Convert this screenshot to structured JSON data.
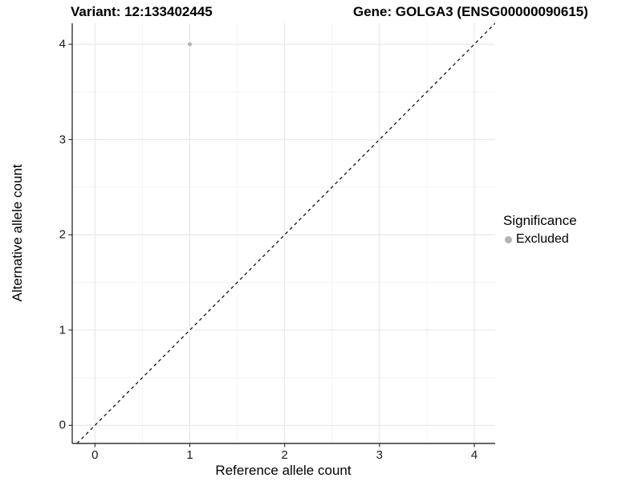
{
  "chart_data": {
    "type": "scatter",
    "title_left": "Variant: 12:133402445",
    "title_right": "Gene: GOLGA3 (ENSG00000090615)",
    "xlabel": "Reference allele count",
    "ylabel": "Alternative allele count",
    "xticks": [
      0,
      1,
      2,
      3,
      4
    ],
    "yticks": [
      0,
      1,
      2,
      3,
      4
    ],
    "xlim": [
      -0.24,
      4.22
    ],
    "ylim": [
      -0.19,
      4.22
    ],
    "minor_grid_interval": 0.5,
    "grid": true,
    "points": [
      {
        "x": 1,
        "y": 4,
        "series": "Excluded"
      }
    ],
    "reference_line": {
      "type": "identity",
      "slope": 1,
      "intercept": 0,
      "style": "dashed",
      "color": "#000000"
    },
    "legend": {
      "title": "Significance",
      "position": "right",
      "entries": [
        {
          "label": "Excluded",
          "color": "#b3b3b3",
          "marker": "circle"
        }
      ]
    },
    "colors": {
      "point": "#b3b3b3",
      "grid_major": "#e6e6e6",
      "grid_minor": "#f3f3f3",
      "axis": "#333333",
      "background": "#ffffff"
    }
  }
}
